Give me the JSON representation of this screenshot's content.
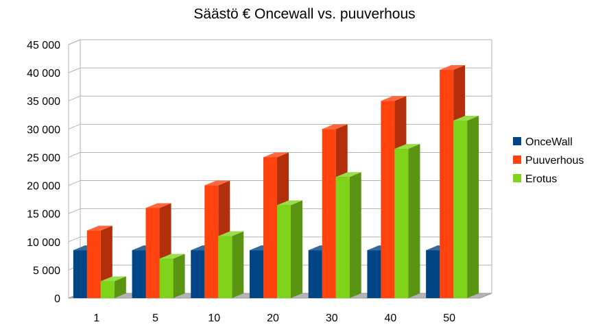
{
  "chart_data": {
    "type": "bar",
    "style": "3d-column",
    "title": "Säästö € Oncewall vs. puuverhous",
    "xlabel": "",
    "ylabel": "",
    "categories": [
      "1",
      "5",
      "10",
      "20",
      "30",
      "40",
      "50"
    ],
    "series": [
      {
        "name": "OnceWall",
        "color": "#004586",
        "values": [
          8500,
          8500,
          8500,
          8500,
          8500,
          8500,
          8500
        ]
      },
      {
        "name": "Puuverhous",
        "color": "#ff420e",
        "values": [
          12000,
          16000,
          20000,
          25000,
          30000,
          35000,
          40500
        ]
      },
      {
        "name": "Erotus",
        "color": "#7fd41a",
        "values": [
          3000,
          7000,
          11000,
          16500,
          21500,
          26500,
          31500
        ]
      }
    ],
    "ylim": [
      0,
      45000
    ],
    "yticks": [
      0,
      5000,
      10000,
      15000,
      20000,
      25000,
      30000,
      35000,
      40000,
      45000
    ],
    "ytick_labels": [
      "0",
      "5 000",
      "10 000",
      "15 000",
      "20 000",
      "25 000",
      "30 000",
      "35 000",
      "40 000",
      "45 000"
    ],
    "grid": true,
    "legend_position": "right"
  }
}
